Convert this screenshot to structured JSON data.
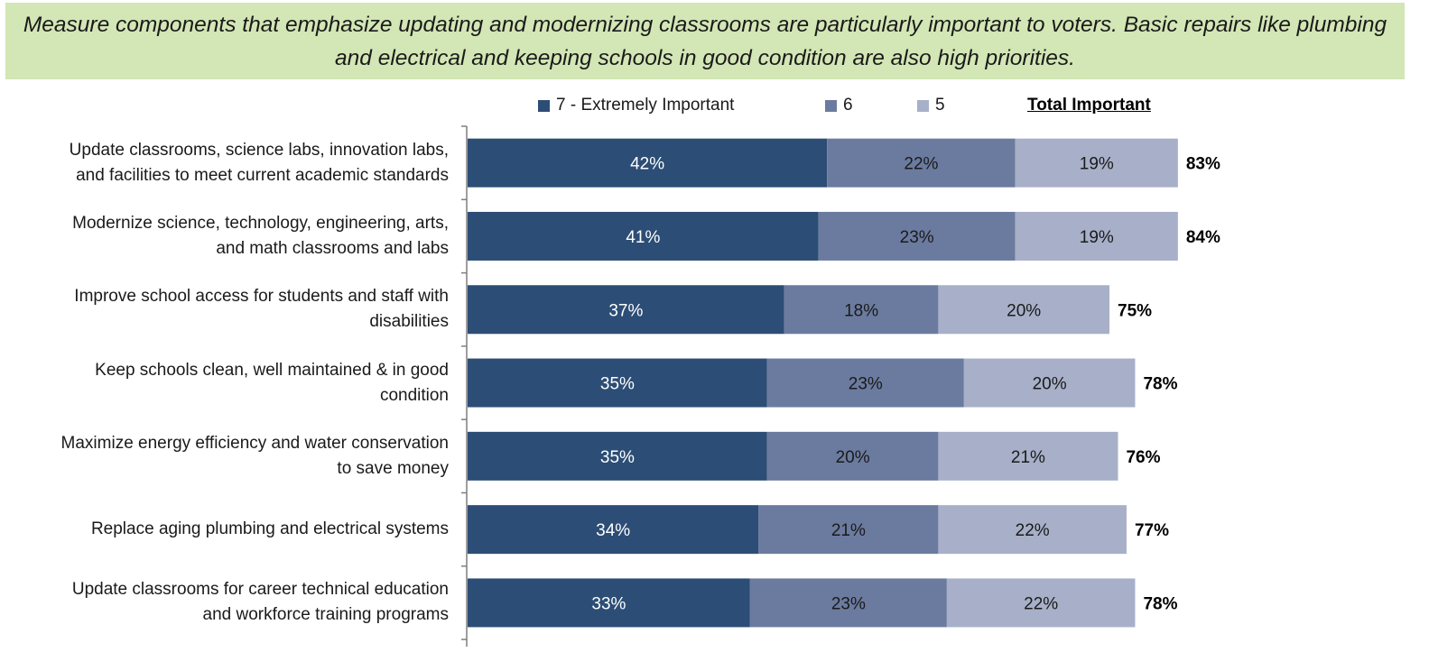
{
  "headline": "Measure components that emphasize updating and modernizing classrooms are particularly important to voters. Basic repairs like plumbing and electrical and keeping schools in good condition are also high priorities.",
  "chart_data": {
    "type": "bar",
    "orientation": "horizontal",
    "stacked": true,
    "categories": [
      [
        "Update classrooms, science labs, innovation labs,",
        "and facilities to meet current academic standards"
      ],
      [
        "Modernize science, technology, engineering, arts,",
        "and math classrooms and labs"
      ],
      [
        "Improve school access for students and staff with",
        "disabilities"
      ],
      [
        "Keep schools clean, well maintained & in good",
        "condition"
      ],
      [
        "Maximize energy efficiency and water conservation",
        "to save money"
      ],
      [
        "Replace aging plumbing and electrical systems"
      ],
      [
        "Update classrooms for career technical education",
        "and workforce training programs"
      ]
    ],
    "series": [
      {
        "name": "7 - Extremely Important",
        "color": "#2c4d75",
        "values": [
          42,
          41,
          37,
          35,
          35,
          34,
          33
        ]
      },
      {
        "name": "6",
        "color": "#6b7b9f",
        "values": [
          22,
          23,
          18,
          23,
          20,
          21,
          23
        ]
      },
      {
        "name": "5",
        "color": "#a7b0c8",
        "values": [
          19,
          19,
          20,
          20,
          21,
          22,
          22
        ]
      }
    ],
    "totals_label": "Total Important",
    "totals": [
      83,
      84,
      75,
      78,
      76,
      77,
      78
    ],
    "value_suffix": "%",
    "xlim": [
      0,
      100
    ],
    "legend_position": "top"
  }
}
